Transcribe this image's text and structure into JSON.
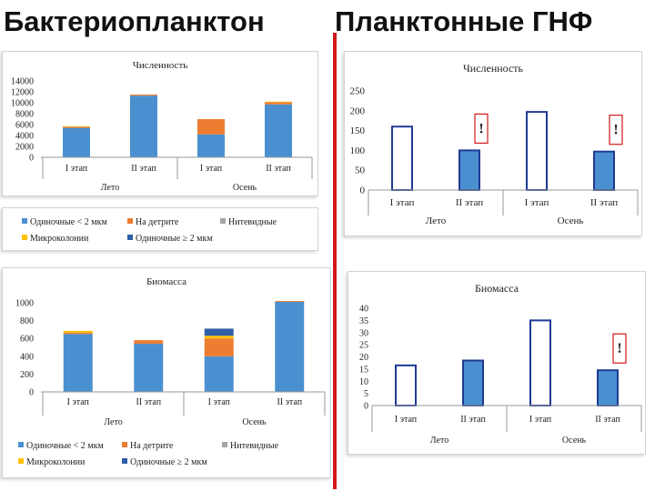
{
  "page": {
    "left_heading": "Бактериопланктон",
    "right_heading": "Планктонные ГНФ"
  },
  "chart_data": [
    {
      "id": "bact-count",
      "type": "bar",
      "stacked": true,
      "title": "Численность",
      "xlabel": "",
      "ylabel": "",
      "categories": [
        "I этап",
        "II этап",
        "I этап",
        "II этап"
      ],
      "groups": [
        "Лето",
        "Осень"
      ],
      "yticks": [
        "14000",
        "12000",
        "10000",
        "8000",
        "6000",
        "4000",
        "2000",
        "0"
      ],
      "ylim": [
        0,
        14000
      ],
      "grid": false,
      "legend_position": "bottom",
      "series": [
        {
          "name": "Одиночные < 2 мкм",
          "color": "#4a90d0",
          "values": [
            5400,
            11300,
            4200,
            9700
          ]
        },
        {
          "name": "На детрите",
          "color": "#ed7d31",
          "values": [
            200,
            200,
            2800,
            400
          ]
        },
        {
          "name": "Нитевидные",
          "color": "#a5a5a5",
          "values": [
            0,
            0,
            0,
            0
          ]
        },
        {
          "name": "Микроколонии",
          "color": "#ffc000",
          "values": [
            100,
            0,
            0,
            100
          ]
        },
        {
          "name": "Одиночные ≥ 2 мкм",
          "color": "#2f5fa8",
          "values": [
            0,
            0,
            0,
            0
          ]
        }
      ]
    },
    {
      "id": "bact-biomass",
      "type": "bar",
      "stacked": true,
      "title": "Биомасса",
      "xlabel": "",
      "ylabel": "",
      "categories": [
        "I этап",
        "II этап",
        "I этап",
        "II этап"
      ],
      "groups": [
        "Лето",
        "Осень"
      ],
      "yticks": [
        "1000",
        "800",
        "600",
        "400",
        "200",
        "0"
      ],
      "ylim": [
        0,
        1000
      ],
      "grid": false,
      "legend_position": "bottom",
      "series": [
        {
          "name": "Одиночные < 2 мкм",
          "color": "#4a90d0",
          "values": [
            650,
            540,
            400,
            1010
          ]
        },
        {
          "name": "На детрите",
          "color": "#ed7d31",
          "values": [
            15,
            40,
            200,
            10
          ]
        },
        {
          "name": "Нитевидные",
          "color": "#a5a5a5",
          "values": [
            0,
            0,
            0,
            0
          ]
        },
        {
          "name": "Микроколонии",
          "color": "#ffc000",
          "values": [
            20,
            0,
            30,
            0
          ]
        },
        {
          "name": "Одиночные ≥ 2 мкм",
          "color": "#2f5fa8",
          "values": [
            0,
            0,
            80,
            0
          ]
        }
      ]
    },
    {
      "id": "hnf-count",
      "type": "bar",
      "title": "Численность",
      "xlabel": "",
      "ylabel": "",
      "categories": [
        "I этап",
        "II этап",
        "I этап",
        "II этап"
      ],
      "groups": [
        "Лето",
        "Осень"
      ],
      "yticks": [
        "250",
        "200",
        "150",
        "100",
        "50",
        "0"
      ],
      "ylim": [
        0,
        250
      ],
      "grid": false,
      "values": [
        160,
        100,
        197,
        97
      ],
      "bar_styles": [
        "outline",
        "filled",
        "outline",
        "filled"
      ],
      "colors": {
        "fill": "#4a90d0",
        "stroke": "#1f3a93",
        "mark": "#d01818"
      },
      "marks": [
        "",
        "!",
        "",
        "!"
      ]
    },
    {
      "id": "hnf-biomass",
      "type": "bar",
      "title": "Биомасса",
      "xlabel": "",
      "ylabel": "",
      "categories": [
        "I этап",
        "II этап",
        "I этап",
        "II этап"
      ],
      "groups": [
        "Лето",
        "Осень"
      ],
      "yticks": [
        "40",
        "35",
        "30",
        "25",
        "20",
        "15",
        "10",
        "5",
        "0"
      ],
      "ylim": [
        0,
        40
      ],
      "grid": false,
      "values": [
        16.5,
        18.5,
        35,
        14.5
      ],
      "bar_styles": [
        "outline",
        "filled",
        "outline",
        "filled"
      ],
      "colors": {
        "fill": "#4a90d0",
        "stroke": "#1f3a93",
        "mark": "#d01818"
      },
      "marks": [
        "",
        "",
        "",
        "!"
      ]
    }
  ]
}
